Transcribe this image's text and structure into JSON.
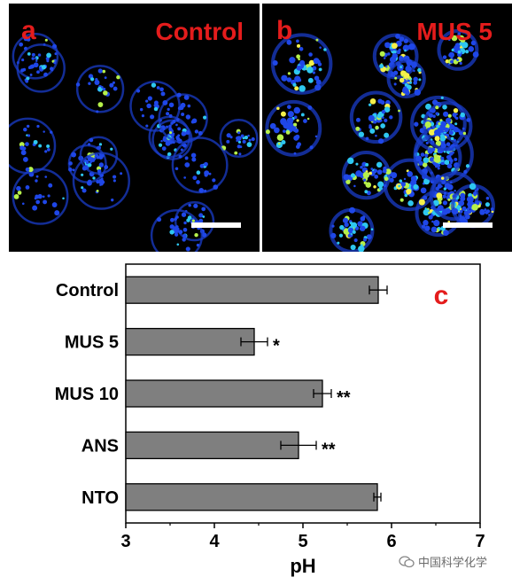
{
  "panel_a": {
    "letter": "a",
    "label": "Control"
  },
  "panel_b": {
    "letter": "b",
    "label": "MUS 5"
  },
  "watermark": {
    "text": "中国科学化学"
  },
  "colors": {
    "label_red": "#e41c1c",
    "bar_fill": "#7f7f7f",
    "image_bg": "#000000"
  },
  "chart_data": {
    "type": "bar",
    "orientation": "horizontal",
    "panel_letter": "c",
    "categories": [
      "Control",
      "MUS 5",
      "MUS 10",
      "ANS",
      "NTO"
    ],
    "values": [
      5.85,
      4.45,
      5.22,
      4.95,
      5.84
    ],
    "errors": [
      0.1,
      0.15,
      0.1,
      0.2,
      0.04
    ],
    "significance": [
      "",
      "*",
      "**",
      "**",
      ""
    ],
    "xlabel": "pH",
    "xlim": [
      3,
      7
    ],
    "xticks": [
      "3",
      "4",
      "5",
      "6",
      "7"
    ]
  }
}
